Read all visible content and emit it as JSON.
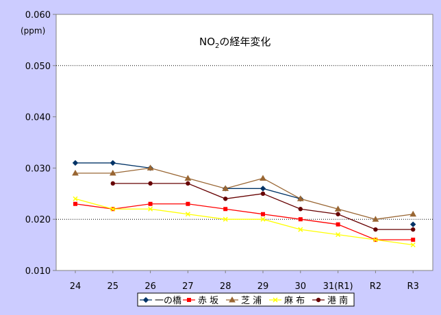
{
  "chart_data": {
    "type": "line",
    "title_main": "NO",
    "title_sub": "2",
    "title_rest": "の経年変化",
    "ylabel": "(ppm)",
    "ylim": [
      0.01,
      0.06
    ],
    "yticks": [
      "0.010",
      "0.020",
      "0.030",
      "0.040",
      "0.050",
      "0.060"
    ],
    "categories": [
      "24",
      "25",
      "26",
      "27",
      "28",
      "29",
      "30",
      "31(R1)",
      "R2",
      "R3"
    ],
    "grid_lines_at": [
      0.02,
      0.05
    ],
    "legend_position": "bottom",
    "series": [
      {
        "name": "一の橋",
        "color": "#003366",
        "marker": "diamond",
        "values": [
          0.031,
          0.031,
          0.03,
          null,
          0.026,
          0.026,
          0.024,
          null,
          null,
          0.019
        ]
      },
      {
        "name": "赤 坂",
        "color": "#ff0000",
        "marker": "square",
        "values": [
          0.023,
          0.022,
          0.023,
          0.023,
          0.022,
          0.021,
          0.02,
          0.019,
          0.016,
          0.016
        ]
      },
      {
        "name": "芝 浦",
        "color": "#996633",
        "marker": "triangle",
        "values": [
          0.029,
          0.029,
          0.03,
          0.028,
          0.026,
          0.028,
          0.024,
          0.022,
          0.02,
          0.021
        ]
      },
      {
        "name": "麻 布",
        "color": "#ffff00",
        "marker": "x",
        "values": [
          0.024,
          0.022,
          0.022,
          0.021,
          0.02,
          0.02,
          0.018,
          0.017,
          0.016,
          0.015
        ]
      },
      {
        "name": "港 南",
        "color": "#660000",
        "marker": "circle",
        "values": [
          null,
          0.027,
          0.027,
          0.027,
          0.024,
          0.025,
          0.022,
          0.021,
          0.018,
          0.018
        ]
      }
    ]
  }
}
